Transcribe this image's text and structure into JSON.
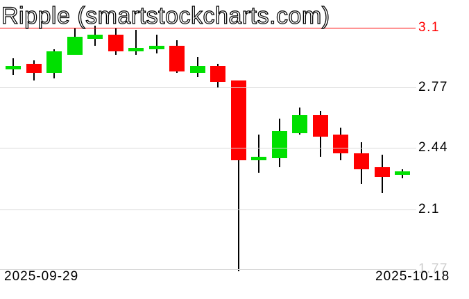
{
  "title": "Ripple (smartstockcharts.com)",
  "colors": {
    "up": "#00e000",
    "down": "#ff0000",
    "wick": "#000000",
    "grid": "#d9d9d9",
    "resistance_line": "#ff0000",
    "label": "#000000",
    "faint_label": "#cccccc",
    "background": "#ffffff"
  },
  "chart_data": {
    "type": "candlestick",
    "title": "Ripple (smartstockcharts.com)",
    "x_axis": {
      "start_label": "2025-09-29",
      "end_label": "2025-10-18"
    },
    "y_axis": {
      "ylim": [
        1.77,
        3.1
      ],
      "ticks": [
        {
          "label": "3.1",
          "price": 3.1,
          "line_style": "red",
          "text_style": "red"
        },
        {
          "label": "2.77",
          "price": 2.77,
          "line_style": "grid",
          "text_style": "normal"
        },
        {
          "label": "2.44",
          "price": 2.44,
          "line_style": "grid",
          "text_style": "normal"
        },
        {
          "label": "2.1",
          "price": 2.1,
          "line_style": "grid",
          "text_style": "normal"
        },
        {
          "label": "1.77",
          "price": 1.77,
          "line_style": "grid",
          "text_style": "faint"
        }
      ]
    },
    "legend": "none",
    "grid": "horizontal-only",
    "candles": [
      {
        "o": 2.87,
        "h": 2.93,
        "l": 2.84,
        "c": 2.89
      },
      {
        "o": 2.9,
        "h": 2.92,
        "l": 2.81,
        "c": 2.85
      },
      {
        "o": 2.85,
        "h": 2.98,
        "l": 2.82,
        "c": 2.97
      },
      {
        "o": 2.95,
        "h": 3.1,
        "l": 2.95,
        "c": 3.05
      },
      {
        "o": 3.04,
        "h": 3.11,
        "l": 3.0,
        "c": 3.06
      },
      {
        "o": 3.06,
        "h": 3.1,
        "l": 2.95,
        "c": 2.97
      },
      {
        "o": 2.97,
        "h": 3.09,
        "l": 2.95,
        "c": 2.99
      },
      {
        "o": 2.98,
        "h": 3.06,
        "l": 2.96,
        "c": 3.0
      },
      {
        "o": 3.0,
        "h": 3.03,
        "l": 2.85,
        "c": 2.86
      },
      {
        "o": 2.85,
        "h": 2.94,
        "l": 2.83,
        "c": 2.89
      },
      {
        "o": 2.89,
        "h": 2.9,
        "l": 2.77,
        "c": 2.8
      },
      {
        "o": 2.81,
        "h": 2.81,
        "l": 1.76,
        "c": 2.37
      },
      {
        "o": 2.37,
        "h": 2.51,
        "l": 2.3,
        "c": 2.39
      },
      {
        "o": 2.38,
        "h": 2.6,
        "l": 2.33,
        "c": 2.53
      },
      {
        "o": 2.52,
        "h": 2.66,
        "l": 2.51,
        "c": 2.62
      },
      {
        "o": 2.62,
        "h": 2.64,
        "l": 2.39,
        "c": 2.5
      },
      {
        "o": 2.51,
        "h": 2.55,
        "l": 2.37,
        "c": 2.41
      },
      {
        "o": 2.41,
        "h": 2.47,
        "l": 2.24,
        "c": 2.32
      },
      {
        "o": 2.33,
        "h": 2.4,
        "l": 2.19,
        "c": 2.28
      },
      {
        "o": 2.29,
        "h": 2.32,
        "l": 2.27,
        "c": 2.31
      }
    ]
  }
}
